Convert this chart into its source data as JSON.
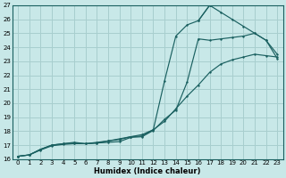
{
  "xlabel": "Humidex (Indice chaleur)",
  "ylabel": "",
  "bg_color": "#c8e8e8",
  "grid_color": "#a8cece",
  "line_color": "#1a6060",
  "xlim": [
    -0.5,
    23.5
  ],
  "ylim": [
    16,
    27
  ],
  "xticks": [
    0,
    1,
    2,
    3,
    4,
    5,
    6,
    7,
    8,
    9,
    10,
    11,
    12,
    13,
    14,
    15,
    16,
    17,
    18,
    19,
    20,
    21,
    22,
    23
  ],
  "yticks": [
    16,
    17,
    18,
    19,
    20,
    21,
    22,
    23,
    24,
    25,
    26,
    27
  ],
  "line1_x": [
    0,
    1,
    2,
    3,
    4,
    5,
    6,
    7,
    8,
    9,
    10,
    11,
    12,
    13,
    14,
    15,
    16,
    17,
    18,
    19,
    20,
    21,
    22,
    23
  ],
  "line1_y": [
    16.2,
    16.3,
    16.7,
    17.0,
    17.1,
    17.15,
    17.1,
    17.15,
    17.2,
    17.25,
    17.55,
    17.6,
    18.05,
    18.85,
    19.5,
    21.5,
    24.6,
    24.5,
    24.6,
    24.7,
    24.8,
    25.0,
    24.5,
    23.2
  ],
  "line2_x": [
    0,
    1,
    2,
    3,
    4,
    5,
    6,
    7,
    8,
    9,
    10,
    11,
    12,
    13,
    14,
    15,
    16,
    17
  ],
  "line2_y": [
    16.2,
    16.3,
    16.7,
    17.0,
    17.1,
    17.2,
    17.1,
    17.15,
    17.3,
    17.4,
    17.6,
    17.65,
    18.1,
    21.6,
    24.8,
    25.6,
    25.9,
    27.0
  ],
  "line2b_x": [
    16,
    17,
    18,
    19,
    20,
    21,
    22,
    23
  ],
  "line2b_y": [
    25.9,
    27.0,
    26.5,
    26.0,
    25.5,
    25.0,
    24.5,
    23.5
  ],
  "line3_x": [
    0,
    1,
    2,
    3,
    4,
    5,
    6,
    7,
    8,
    9,
    10,
    11,
    12,
    13,
    14,
    15,
    16,
    17,
    18,
    19,
    20,
    21,
    22,
    23
  ],
  "line3_y": [
    16.2,
    16.3,
    16.65,
    16.95,
    17.05,
    17.1,
    17.1,
    17.2,
    17.3,
    17.45,
    17.6,
    17.75,
    18.1,
    18.7,
    19.6,
    20.5,
    21.3,
    22.2,
    22.8,
    23.1,
    23.3,
    23.5,
    23.4,
    23.3
  ]
}
